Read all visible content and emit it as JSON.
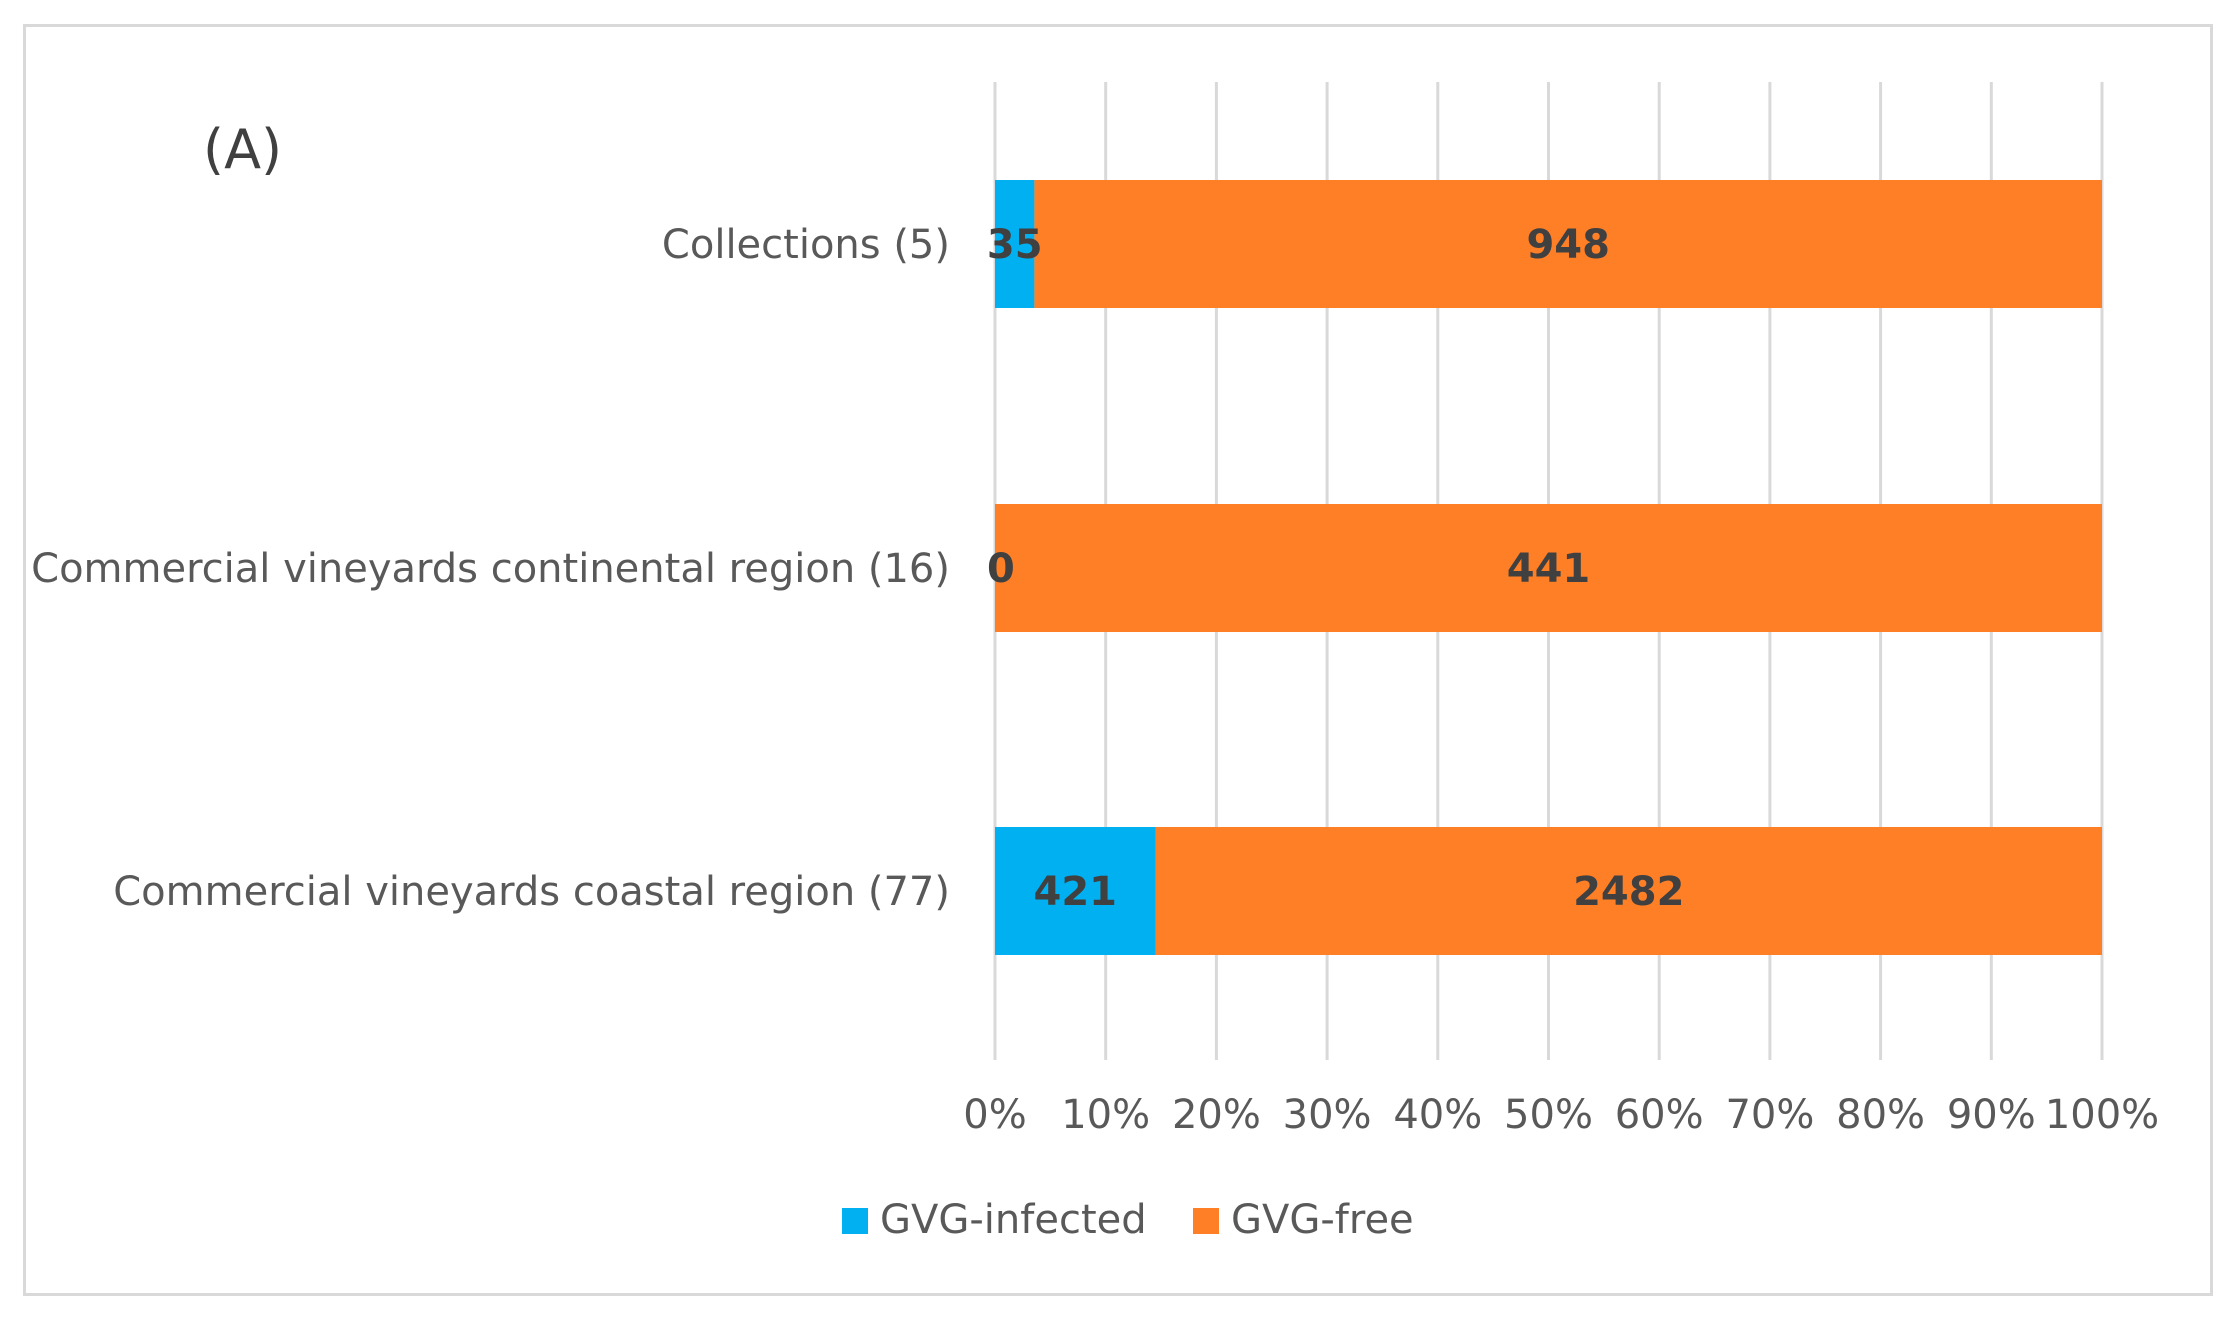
{
  "panel_label": "(A)",
  "chart_data": {
    "type": "bar",
    "orientation": "horizontal",
    "stacked": "percent",
    "categories": [
      "Collections (5)",
      "Commercial vineyards continental region  (16)",
      "Commercial vineyards coastal region (77)"
    ],
    "series": [
      {
        "name": "GVG-infected",
        "color": "#00b0f0",
        "values": [
          35,
          0,
          421
        ]
      },
      {
        "name": "GVG-free",
        "color": "#ff7f27",
        "values": [
          948,
          441,
          2482
        ]
      }
    ],
    "xticks": [
      "0%",
      "10%",
      "20%",
      "30%",
      "40%",
      "50%",
      "60%",
      "70%",
      "80%",
      "90%",
      "100%"
    ],
    "xlim": [
      0,
      100
    ],
    "grid": "vertical",
    "legend_position": "bottom"
  }
}
